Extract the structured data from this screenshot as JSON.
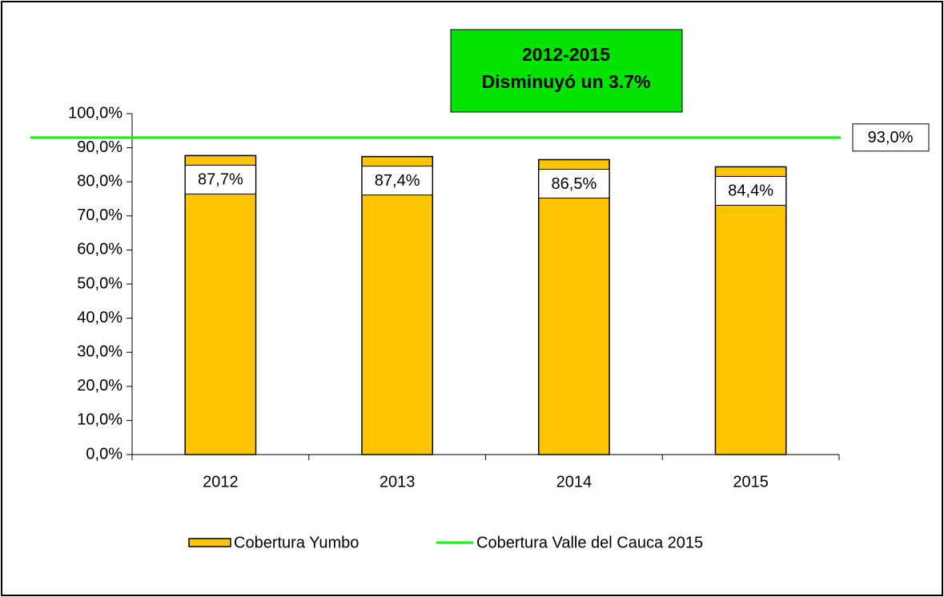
{
  "chart_data": {
    "type": "bar",
    "categories": [
      "2012",
      "2013",
      "2014",
      "2015"
    ],
    "series": [
      {
        "name": "Cobertura Yumbo",
        "color": "#ffc600",
        "values": [
          87.7,
          87.4,
          86.5,
          84.4
        ],
        "value_labels": [
          "87,7%",
          "87,4%",
          "86,5%",
          "84,4%"
        ]
      }
    ],
    "reference_line": {
      "name": "Cobertura Valle del Cauca 2015",
      "color": "#00ff00",
      "value": 93,
      "value_label": "93,0%"
    },
    "annotation": {
      "lines": [
        "2012-2015",
        "Disminuyó un 3.7%"
      ],
      "color": "#00e400"
    },
    "ylim": [
      0,
      100
    ],
    "yticks": [
      {
        "value": 0,
        "label": "0,0%"
      },
      {
        "value": 10,
        "label": "10,0%"
      },
      {
        "value": 20,
        "label": "20,0%"
      },
      {
        "value": 30,
        "label": "30,0%"
      },
      {
        "value": 40,
        "label": "40,0%"
      },
      {
        "value": 50,
        "label": "50,0%"
      },
      {
        "value": 60,
        "label": "60,0%"
      },
      {
        "value": 70,
        "label": "70,0%"
      },
      {
        "value": 80,
        "label": "80,0%"
      },
      {
        "value": 90,
        "label": "90,0%"
      },
      {
        "value": 100,
        "label": "100,0%"
      }
    ]
  }
}
